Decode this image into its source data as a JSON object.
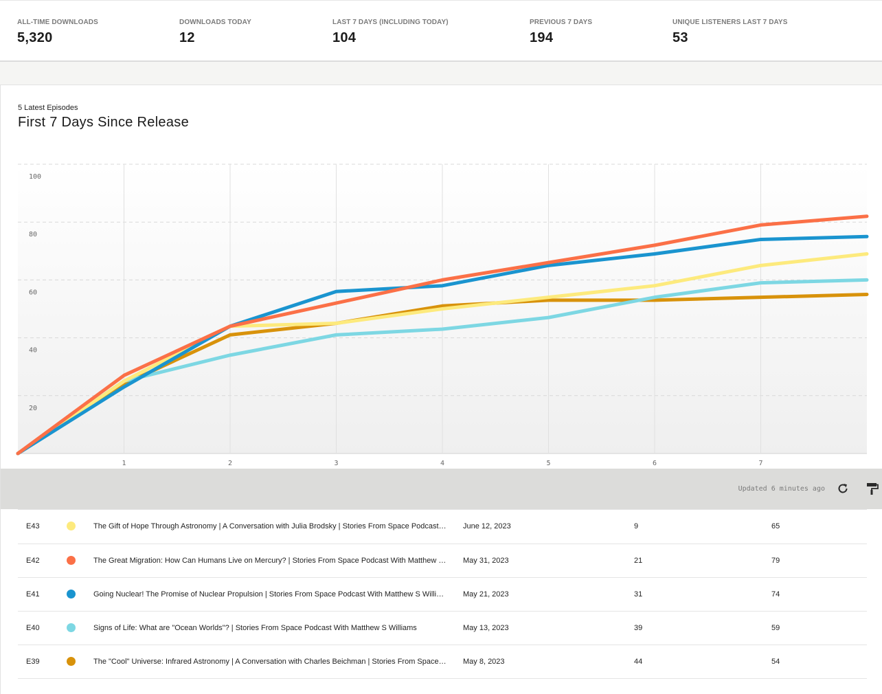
{
  "stats": [
    {
      "label": "ALL-TIME DOWNLOADS",
      "value": "5,320"
    },
    {
      "label": "DOWNLOADS TODAY",
      "value": "12"
    },
    {
      "label": "LAST 7 DAYS (INCLUDING TODAY)",
      "value": "104"
    },
    {
      "label": "PREVIOUS 7 DAYS",
      "value": "194"
    },
    {
      "label": "UNIQUE LISTENERS LAST 7 DAYS",
      "value": "53"
    }
  ],
  "card": {
    "subtitle": "5 Latest Episodes",
    "title": "First 7 Days Since Release"
  },
  "toolbar": {
    "updated_text": "Updated 6 minutes ago",
    "refresh_icon": "refresh-icon",
    "format_icon": "paint-roller-icon"
  },
  "episodes": [
    {
      "ep": "E43",
      "color": "#fdea7d",
      "title": "The Gift of Hope Through Astronomy | A Conversation with Julia Brodsky | Stories From Space Podcast With Matthew S Williams",
      "date": "June 12, 2023",
      "days": "9",
      "downloads": "65"
    },
    {
      "ep": "E42",
      "color": "#fb7047",
      "title": "The Great Migration: How Can Humans Live on Mercury? | Stories From Space Podcast With Matthew S Williams",
      "date": "May 31, 2023",
      "days": "21",
      "downloads": "79"
    },
    {
      "ep": "E41",
      "color": "#1a94cf",
      "title": "Going Nuclear! The Promise of Nuclear Propulsion | Stories From Space Podcast With Matthew S Williams",
      "date": "May 21, 2023",
      "days": "31",
      "downloads": "74"
    },
    {
      "ep": "E40",
      "color": "#7dd7e3",
      "title": "Signs of Life: What are \"Ocean Worlds\"? | Stories From Space Podcast With Matthew S Williams",
      "date": "May 13, 2023",
      "days": "39",
      "downloads": "59"
    },
    {
      "ep": "E39",
      "color": "#d8920b",
      "title": "The \"Cool\" Universe: Infrared Astronomy | A Conversation with Charles Beichman | Stories From Space Podcast",
      "date": "May 8, 2023",
      "days": "44",
      "downloads": "54"
    }
  ],
  "chart_data": {
    "type": "line",
    "x": [
      0,
      1,
      2,
      3,
      4,
      5,
      6,
      7,
      8
    ],
    "xticks": [
      1,
      2,
      3,
      4,
      5,
      6,
      7
    ],
    "yticks": [
      20,
      40,
      60,
      80,
      100
    ],
    "xlim": [
      0,
      8
    ],
    "ylim": [
      0,
      100
    ],
    "grid": true,
    "series": [
      {
        "episode": "E39",
        "color": "#d8920b",
        "values": [
          0,
          24,
          41,
          45,
          51,
          53,
          53,
          54,
          55
        ]
      },
      {
        "episode": "E40",
        "color": "#7dd7e3",
        "values": [
          0,
          25,
          34,
          41,
          43,
          47,
          54,
          59,
          60
        ]
      },
      {
        "episode": "E43",
        "color": "#fdea7d",
        "values": [
          0,
          25,
          44,
          45,
          50,
          54,
          58,
          65,
          69
        ]
      },
      {
        "episode": "E41",
        "color": "#1a94cf",
        "values": [
          0,
          23,
          44,
          56,
          58,
          65,
          69,
          74,
          75
        ]
      },
      {
        "episode": "E42",
        "color": "#fb7047",
        "values": [
          0,
          27,
          44,
          52,
          60,
          66,
          72,
          79,
          82
        ]
      }
    ]
  }
}
